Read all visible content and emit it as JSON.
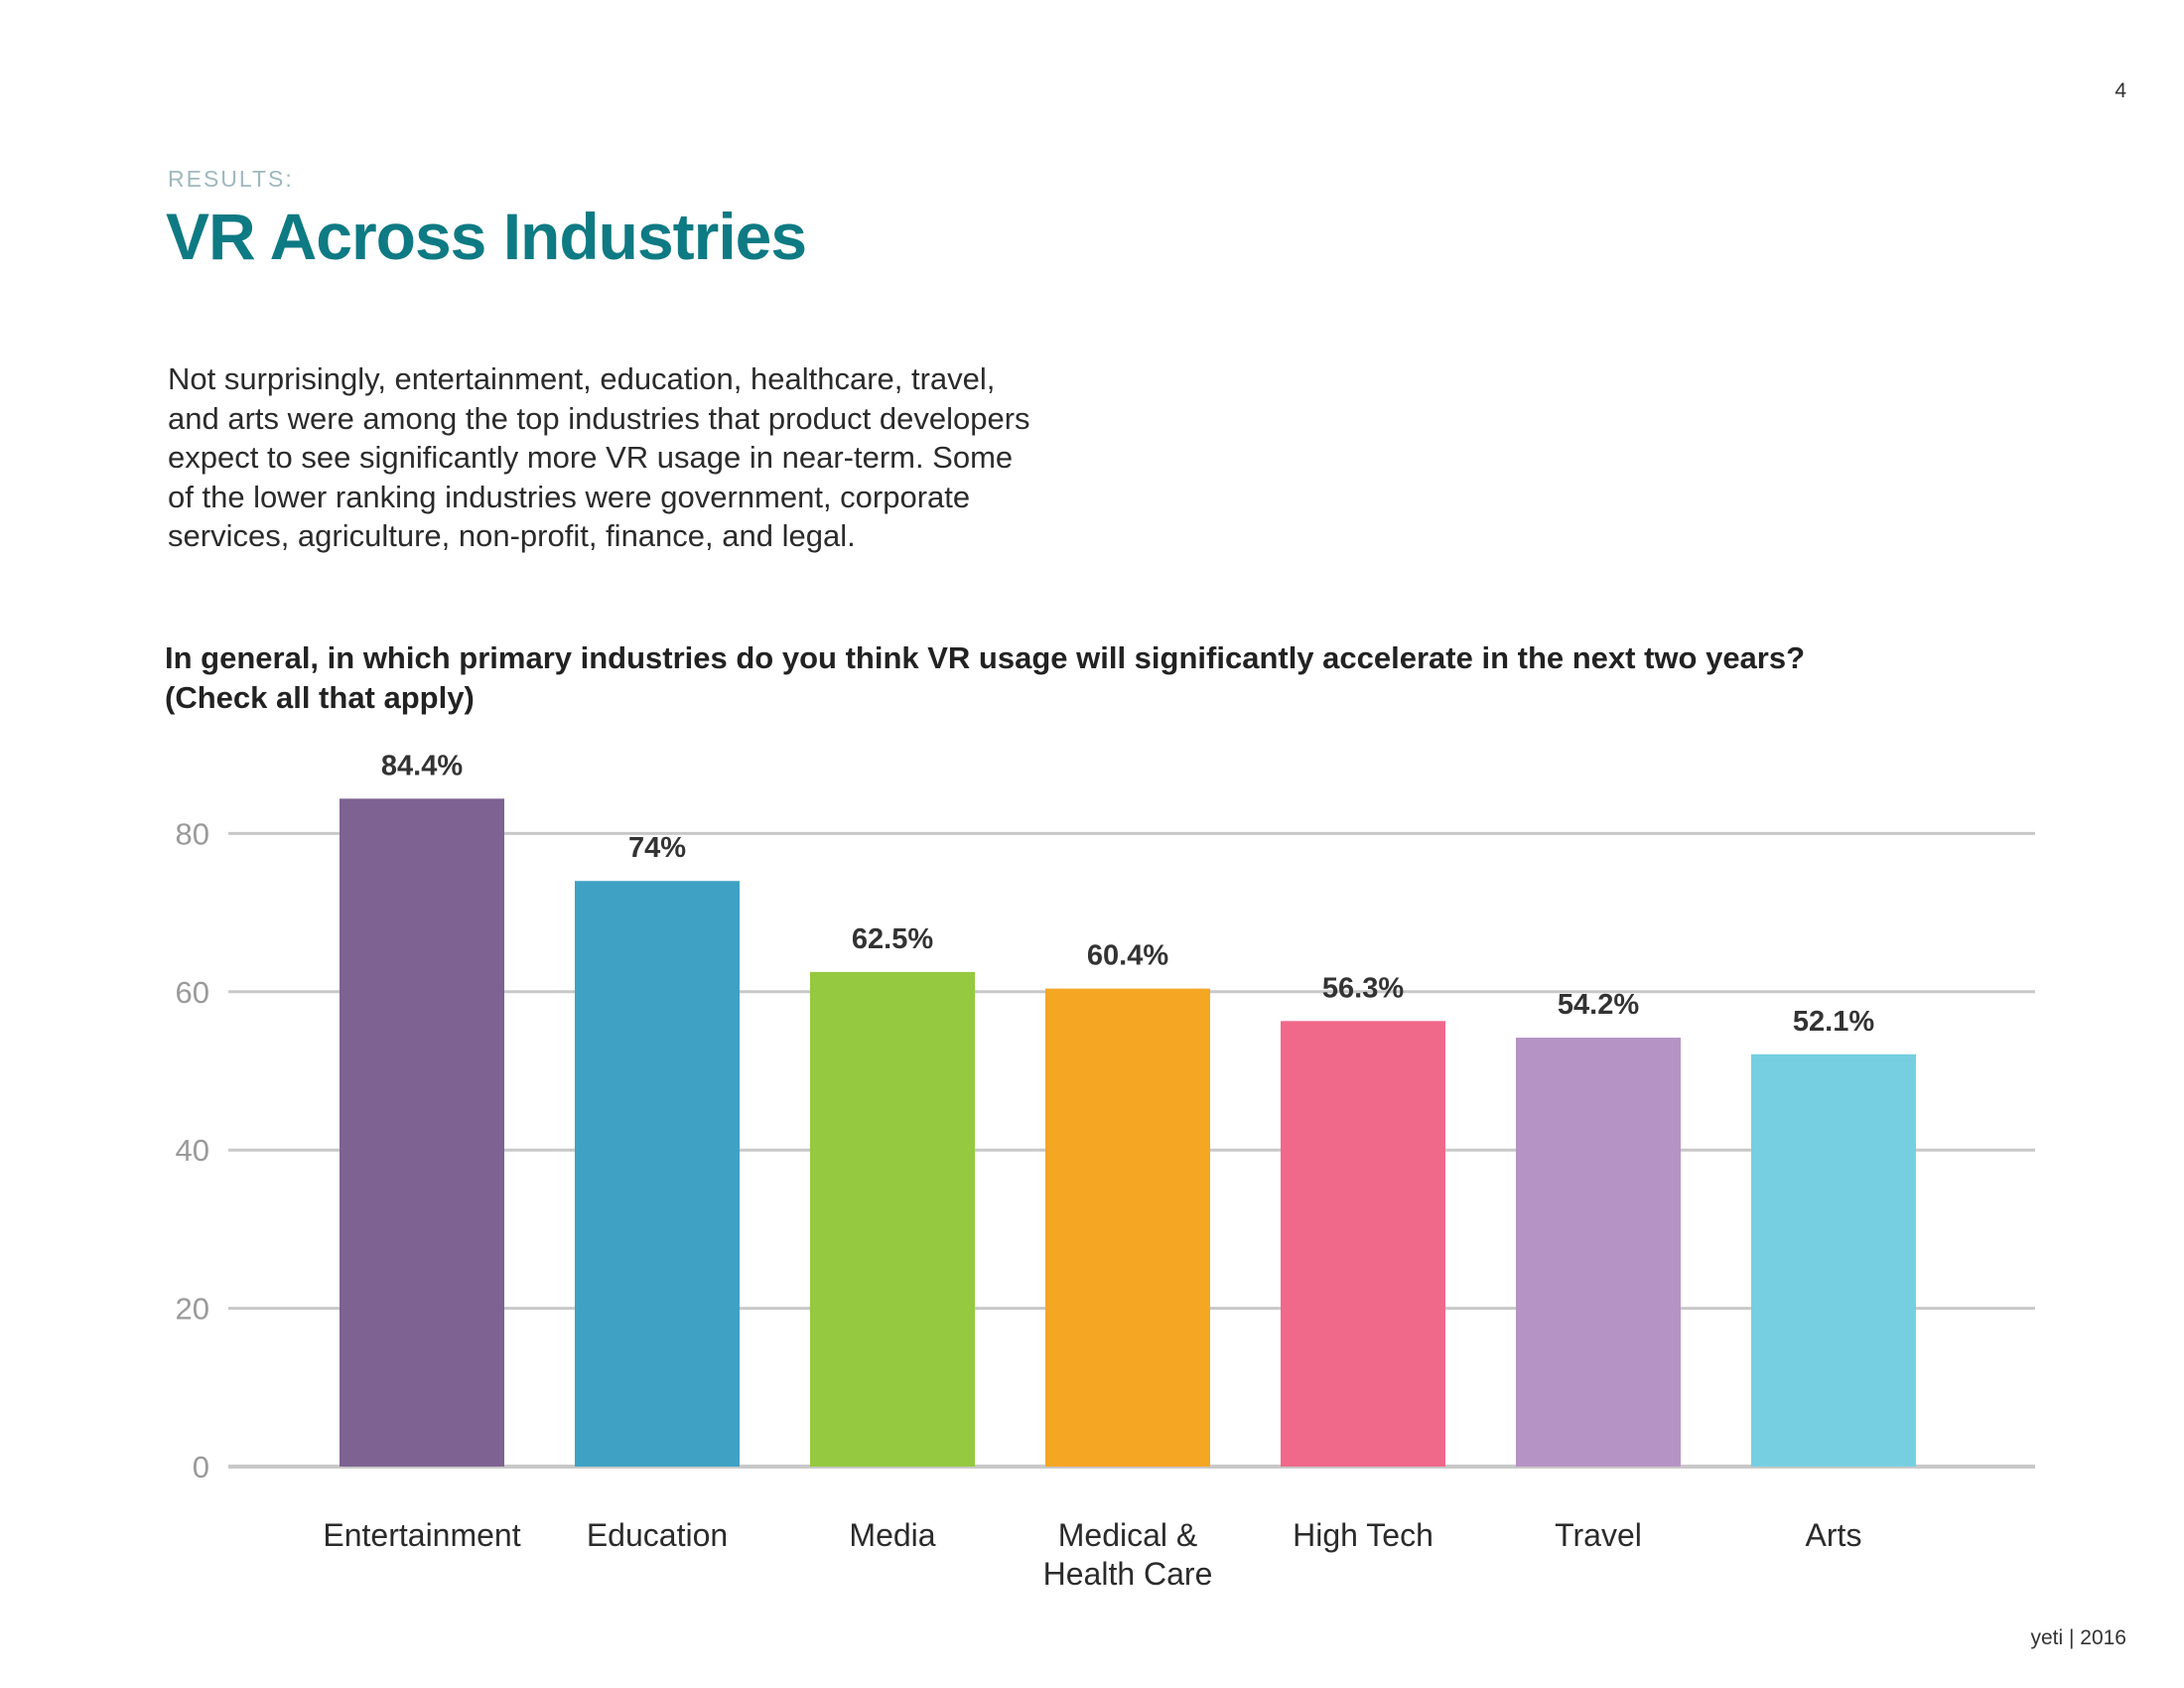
{
  "page_number": "4",
  "section_label": "RESULTS:",
  "title": "VR Across Industries",
  "body_text": "Not surprisingly, entertainment, education, healthcare, travel,\nand arts were among the top industries that product developers\nexpect to see significantly more VR usage in near-term. Some\nof the lower ranking industries were government, corporate\nservices, agriculture, non-profit, finance, and legal.",
  "chart_question": "In general, in which primary industries do you think VR usage will significantly accelerate in the next two years?\n(Check all that apply)",
  "footer": "yeti | 2016",
  "chart_data": {
    "type": "bar",
    "categories": [
      "Entertainment",
      "Education",
      "Media",
      "Medical & Health Care",
      "High Tech",
      "Travel",
      "Arts"
    ],
    "category_lines": [
      [
        "Entertainment"
      ],
      [
        "Education"
      ],
      [
        "Media"
      ],
      [
        "Medical &",
        "Health Care"
      ],
      [
        "High Tech"
      ],
      [
        "Travel"
      ],
      [
        "Arts"
      ]
    ],
    "values": [
      84.4,
      74,
      62.5,
      60.4,
      56.3,
      54.2,
      52.1
    ],
    "data_labels": [
      "84.4%",
      "74%",
      "62.5%",
      "60.4%",
      "56.3%",
      "54.2%",
      "52.1%"
    ],
    "colors": [
      "#7d6292",
      "#3fa1c4",
      "#95c93f",
      "#f5a623",
      "#f0688a",
      "#b593c4",
      "#75cfe1"
    ],
    "yticks": [
      0,
      20,
      40,
      60,
      80
    ],
    "ylim": [
      0,
      80
    ],
    "grid": true,
    "grid_color": "#c8c8c8",
    "title": "",
    "xlabel": "",
    "ylabel": ""
  }
}
